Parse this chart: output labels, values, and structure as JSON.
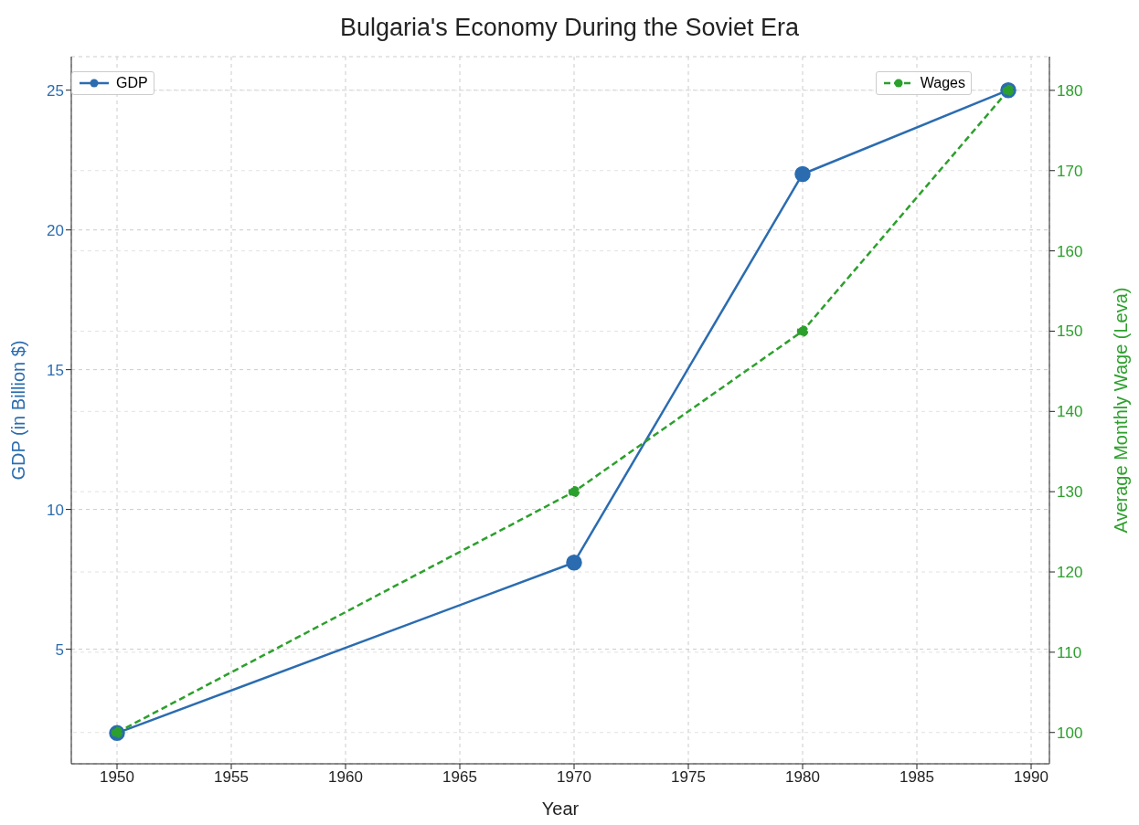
{
  "chart_data": {
    "type": "line",
    "title": "Bulgaria's Economy During the Soviet Era",
    "xlabel": "Year",
    "ylabel": "GDP (in Billion $)",
    "y2label": "Average Monthly Wage (Leva)",
    "x": [
      1950,
      1970,
      1980,
      1989
    ],
    "series": [
      {
        "name": "GDP",
        "color": "#2b6cb0",
        "values": [
          2,
          8.1,
          22,
          25
        ],
        "line_style": "solid"
      },
      {
        "name": "Wages",
        "color": "#2ca02c",
        "values": [
          100,
          130,
          150,
          180
        ],
        "axis": "y2",
        "line_style": "dashed"
      }
    ],
    "xlim": [
      1948,
      1990.8
    ],
    "xticks": [
      1950,
      1955,
      1960,
      1965,
      1970,
      1975,
      1980,
      1985,
      1990
    ],
    "ylim": [
      0.9,
      26.2
    ],
    "yticks": [
      5,
      10,
      15,
      20,
      25
    ],
    "y2lim": [
      96.1,
      184.2
    ],
    "y2ticks": [
      100,
      110,
      120,
      130,
      140,
      150,
      160,
      170,
      180
    ],
    "grid": true,
    "legend": "top",
    "marker": "circle"
  }
}
